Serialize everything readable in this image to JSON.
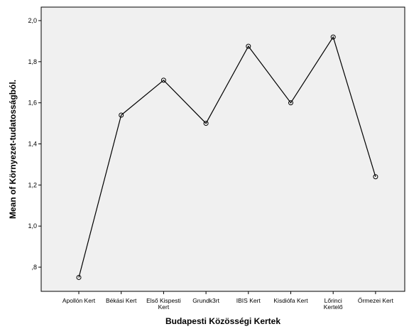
{
  "chart_data": {
    "type": "line",
    "title": "",
    "xlabel": "Budapesti Közösségi Kertek",
    "ylabel": "Mean of Környezet-tudatosságból.",
    "categories": [
      [
        "Apollón Kert"
      ],
      [
        "Békási Kert"
      ],
      [
        "Első Kispesti",
        "Kert"
      ],
      [
        "Grundk3rt"
      ],
      [
        "IBIS Kert"
      ],
      [
        "Kisdiófa Kert"
      ],
      [
        "Lőrinci",
        "Kertelő"
      ],
      [
        "Őrmezei Kert"
      ]
    ],
    "values": [
      0.75,
      1.54,
      1.71,
      1.5,
      1.875,
      1.6,
      1.92,
      1.24
    ],
    "ylim": [
      0.7,
      2.05
    ],
    "yticks": [
      0.8,
      1.0,
      1.2,
      1.4,
      1.6,
      1.8,
      2.0
    ],
    "ytick_labels": [
      ",8",
      "1,0",
      "1,2",
      "1,4",
      "1,6",
      "1,8",
      "2,0"
    ],
    "grid": false,
    "plot_background": "#f0f0f0",
    "line_color": "#000000",
    "marker": "open-circle"
  }
}
